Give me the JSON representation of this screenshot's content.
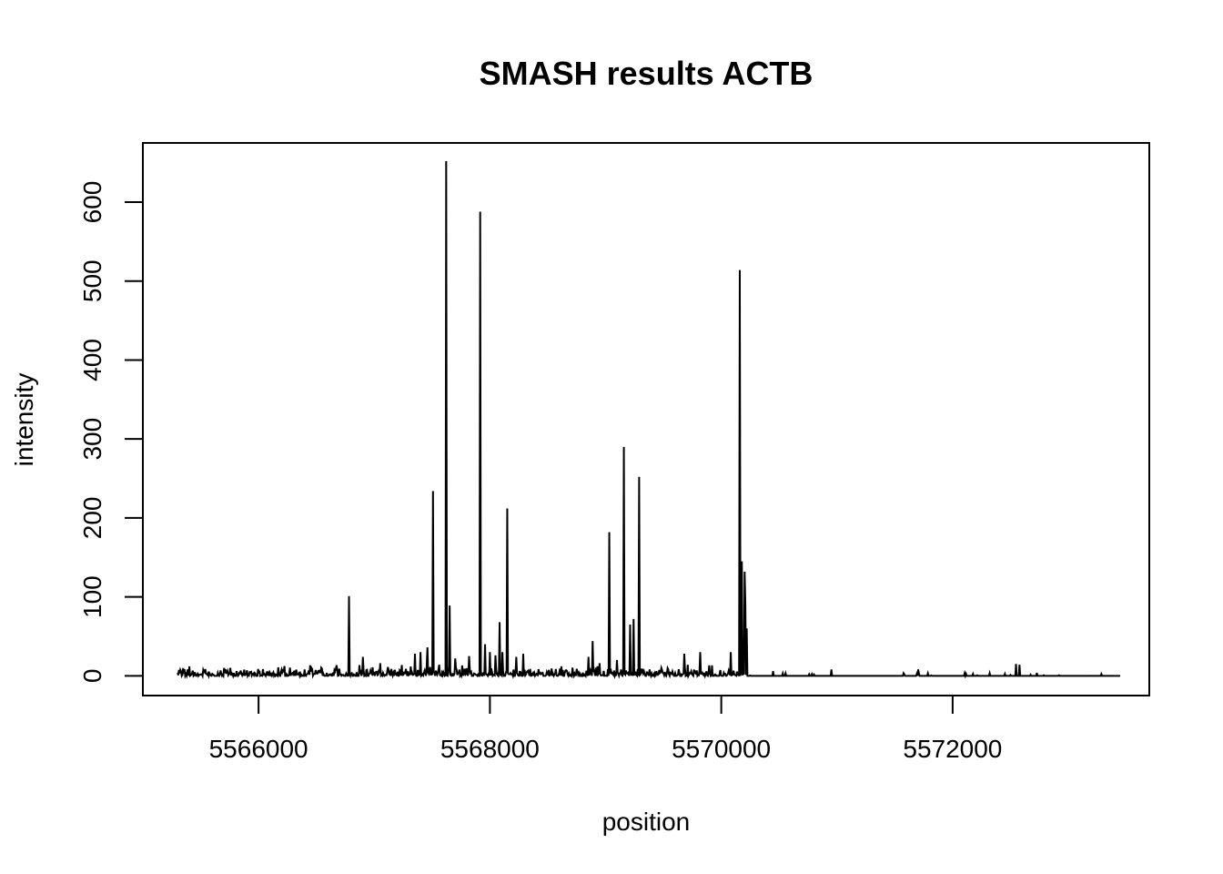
{
  "chart_data": {
    "type": "line",
    "title": "SMASH results ACTB",
    "xlabel": "position",
    "ylabel": "intensity",
    "xlim": [
      5565000,
      5573700
    ],
    "ylim": [
      -25,
      675
    ],
    "xticks": [
      5566000,
      5568000,
      5570000,
      5572000
    ],
    "xtick_labels": [
      "5566000",
      "5568000",
      "5570000",
      "5572000"
    ],
    "yticks": [
      0,
      100,
      200,
      300,
      400,
      500,
      600
    ],
    "ytick_labels": [
      "0",
      "100",
      "200",
      "300",
      "400",
      "500",
      "600"
    ],
    "grid": false,
    "legend": "none",
    "line_color": "#000000",
    "series": [
      {
        "x_start": 5565300,
        "x_end": 5573450,
        "noise_end": 5570220,
        "peaks": [
          [
            5565400,
            12
          ],
          [
            5565700,
            10
          ],
          [
            5566200,
            8
          ],
          [
            5566550,
            9
          ],
          [
            5566780,
            101
          ],
          [
            5566900,
            24
          ],
          [
            5567050,
            16
          ],
          [
            5567350,
            28
          ],
          [
            5567400,
            30
          ],
          [
            5567460,
            36
          ],
          [
            5567510,
            234
          ],
          [
            5567560,
            14
          ],
          [
            5567625,
            652
          ],
          [
            5567650,
            89
          ],
          [
            5567700,
            22
          ],
          [
            5567820,
            25
          ],
          [
            5567915,
            588
          ],
          [
            5567960,
            40
          ],
          [
            5568000,
            30
          ],
          [
            5568050,
            26
          ],
          [
            5568085,
            68
          ],
          [
            5568110,
            30
          ],
          [
            5568150,
            212
          ],
          [
            5568230,
            24
          ],
          [
            5568290,
            28
          ],
          [
            5568620,
            12
          ],
          [
            5568850,
            24
          ],
          [
            5568890,
            44
          ],
          [
            5568950,
            16
          ],
          [
            5569030,
            182
          ],
          [
            5569100,
            20
          ],
          [
            5569160,
            290
          ],
          [
            5569210,
            65
          ],
          [
            5569240,
            72
          ],
          [
            5569290,
            252
          ],
          [
            5569480,
            10
          ],
          [
            5569680,
            28
          ],
          [
            5569820,
            30
          ],
          [
            5570080,
            30
          ],
          [
            5570160,
            514
          ],
          [
            5570180,
            145
          ],
          [
            5570200,
            132
          ],
          [
            5570210,
            92
          ],
          [
            5570220,
            60
          ],
          [
            5570450,
            6
          ],
          [
            5570950,
            8
          ],
          [
            5571700,
            8
          ],
          [
            5572550,
            15
          ],
          [
            5572580,
            14
          ]
        ]
      }
    ]
  }
}
